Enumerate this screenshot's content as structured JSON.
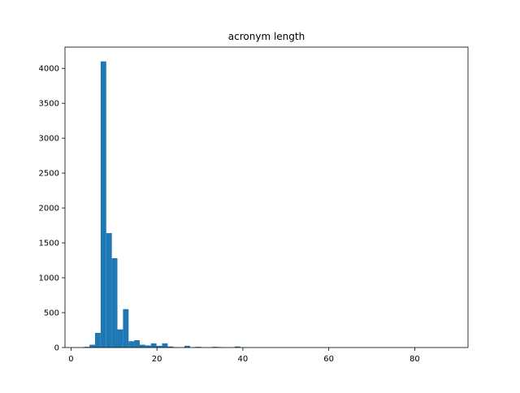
{
  "chart_data": {
    "type": "bar",
    "title": "acronym length",
    "xlabel": "",
    "ylabel": "",
    "bins": {
      "start": 3,
      "width": 1.3,
      "values": [
        10,
        40,
        210,
        4100,
        1640,
        1280,
        260,
        550,
        90,
        105,
        40,
        30,
        60,
        25,
        60,
        15,
        5,
        0,
        25,
        0,
        10,
        0,
        0,
        10,
        5,
        0,
        0,
        15,
        0,
        0,
        0,
        0,
        0,
        0,
        0,
        0,
        0,
        0,
        0,
        0,
        0,
        0,
        0,
        0,
        0,
        0,
        0,
        0,
        0,
        0,
        0,
        0,
        0,
        0,
        0,
        0,
        0,
        0,
        0,
        0,
        0,
        0,
        0,
        0,
        1
      ]
    },
    "xlim": [
      -1.4,
      92.4
    ],
    "ylim": [
      0,
      4305
    ],
    "xticks": [
      0,
      20,
      40,
      60,
      80
    ],
    "yticks": [
      0,
      500,
      1000,
      1500,
      2000,
      2500,
      3000,
      3500,
      4000
    ],
    "bar_color": "#1f77b4",
    "grid": false,
    "legend": "none"
  }
}
